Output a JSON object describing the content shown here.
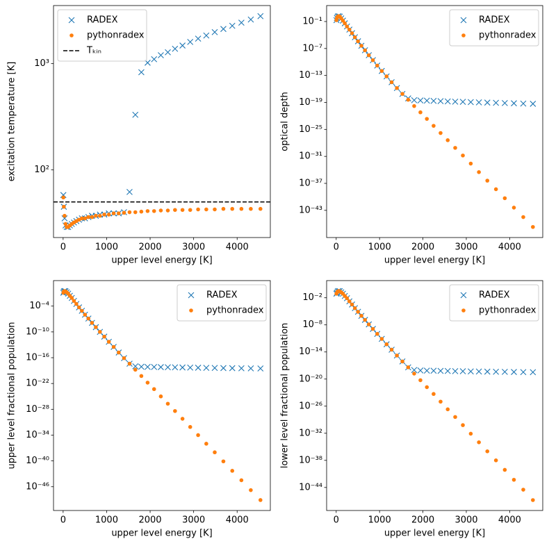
{
  "chart_data": [
    {
      "type": "scatter",
      "log_y": true,
      "xlabel": "upper level energy [K]",
      "ylabel": "excitation temperature [K]",
      "xlim": [
        -221,
        4763
      ],
      "xticks": [
        0,
        1000,
        2000,
        3000,
        4000
      ],
      "ylim": [
        23.1,
        3520
      ],
      "yticks": [
        {
          "value": 100,
          "label": "10²"
        },
        {
          "value": 1000,
          "label": "10³"
        }
      ],
      "legend": "upper left",
      "x": [
        5.5,
        16.6,
        33.2,
        55.3,
        83,
        116,
        155,
        199,
        249,
        304,
        365,
        431,
        503,
        581,
        664,
        752,
        846,
        946,
        1051,
        1162,
        1278,
        1400,
        1527,
        1660,
        1798,
        1942,
        2091,
        2246,
        2407,
        2572,
        2744,
        2921,
        3103,
        3291,
        3485,
        3684,
        3888,
        4098,
        4314,
        4536
      ],
      "series": [
        {
          "name": "RADEX",
          "color": "#1f77b4",
          "marker": "x",
          "values": [
            58,
            45,
            35,
            30,
            29,
            29,
            30,
            31,
            32,
            33,
            34,
            35,
            35,
            36,
            37,
            37,
            38,
            38,
            39,
            39,
            39,
            40,
            62,
            330,
            830,
            1020,
            1100,
            1200,
            1280,
            1380,
            1480,
            1600,
            1720,
            1840,
            1980,
            2120,
            2270,
            2430,
            2600,
            2800
          ]
        },
        {
          "name": "pythonradex",
          "color": "#ff7f0e",
          "marker": "o",
          "values": [
            55,
            45,
            37,
            31,
            29,
            29,
            30,
            31,
            32,
            33,
            34,
            35,
            35,
            36,
            36,
            37,
            37,
            38,
            38,
            39,
            39,
            39.5,
            40,
            40,
            40.5,
            41,
            41,
            41.5,
            41.5,
            42,
            42,
            42,
            42.5,
            42.5,
            42.5,
            43,
            43,
            43,
            43,
            43
          ]
        }
      ],
      "hlines": [
        {
          "name": "Tₖᵢₙ",
          "value": 50,
          "color": "#000000",
          "style": "dashed"
        }
      ]
    },
    {
      "type": "scatter",
      "log_y": true,
      "xlabel": "upper level energy [K]",
      "ylabel": "optical depth",
      "xlim": [
        -221,
        4763
      ],
      "xticks": [
        0,
        1000,
        2000,
        3000,
        4000
      ],
      "ylim": [
        8.9e-50,
        355
      ],
      "yticks": [
        {
          "value": 0.1,
          "label": "10⁻¹"
        },
        {
          "value": 1e-07,
          "label": "10⁻⁷"
        },
        {
          "value": 1e-13,
          "label": "10⁻¹³"
        },
        {
          "value": 1e-19,
          "label": "10⁻¹⁹"
        },
        {
          "value": 1e-25,
          "label": "10⁻²⁵"
        },
        {
          "value": 1e-31,
          "label": "10⁻³¹"
        },
        {
          "value": 1e-37,
          "label": "10⁻³⁷"
        },
        {
          "value": 1e-43,
          "label": "10⁻⁴³"
        }
      ],
      "legend": "upper right",
      "x": [
        5.5,
        16.6,
        33.2,
        55.3,
        83,
        116,
        155,
        199,
        249,
        304,
        365,
        431,
        503,
        581,
        664,
        752,
        846,
        946,
        1051,
        1162,
        1278,
        1400,
        1527,
        1660,
        1798,
        1942,
        2091,
        2246,
        2407,
        2572,
        2744,
        2921,
        3103,
        3291,
        3485,
        3684,
        3888,
        4098,
        4314,
        4536
      ],
      "series": [
        {
          "name": "RADEX",
          "color": "#1f77b4",
          "marker": "x",
          "values": [
            0.2,
            0.63,
            1.26,
            1.58,
            1.26,
            0.5,
            0.158,
            0.04,
            0.0079,
            0.00158,
            0.00025,
            3.16e-05,
            4e-06,
            4e-07,
            4e-08,
            3.16e-09,
            2.5e-10,
            1.58e-11,
            1e-12,
            6.3e-14,
            3.16e-15,
            1.58e-16,
            7.9e-18,
            7.9e-19,
            3.2e-19,
            2.8e-19,
            2.5e-19,
            2.2e-19,
            1.95e-19,
            1.7e-19,
            1.5e-19,
            1.35e-19,
            1.2e-19,
            1.05e-19,
            9.3e-20,
            8.3e-20,
            7.2e-20,
            6.5e-20,
            5.6e-20,
            5e-20
          ]
        },
        {
          "name": "pythonradex",
          "color": "#ff7f0e",
          "marker": "o",
          "values": [
            0.2,
            0.63,
            1.26,
            1.58,
            1.26,
            0.5,
            0.158,
            0.04,
            0.0079,
            0.00158,
            0.00025,
            3.16e-05,
            4e-06,
            4e-07,
            4e-08,
            3.16e-09,
            2.5e-10,
            1.58e-11,
            1e-12,
            6.3e-14,
            3.16e-15,
            1.58e-16,
            7.9e-18,
            4e-19,
            1.58e-20,
            6.3e-22,
            2.2e-23,
            6.3e-25,
            1.58e-26,
            4e-28,
            7.9e-30,
            1.58e-31,
            2.5e-33,
            3.16e-35,
            4e-37,
            5e-39,
            5e-41,
            4e-43,
            3.16e-45,
            2e-47
          ]
        }
      ]
    },
    {
      "type": "scatter",
      "log_y": true,
      "xlabel": "upper level energy [K]",
      "ylabel": "upper level fractional population",
      "xlim": [
        -221,
        4763
      ],
      "xticks": [
        0,
        1000,
        2000,
        3000,
        4000
      ],
      "ylim": [
        2.95e-52,
        85
      ],
      "yticks": [
        {
          "value": 0.0001,
          "label": "10⁻⁴"
        },
        {
          "value": 1e-10,
          "label": "10⁻¹⁰"
        },
        {
          "value": 1e-16,
          "label": "10⁻¹⁶"
        },
        {
          "value": 1e-22,
          "label": "10⁻²²"
        },
        {
          "value": 1e-28,
          "label": "10⁻²⁸"
        },
        {
          "value": 1e-34,
          "label": "10⁻³⁴"
        },
        {
          "value": 1e-40,
          "label": "10⁻⁴⁰"
        },
        {
          "value": 1e-46,
          "label": "10⁻⁴⁶"
        }
      ],
      "legend": "upper right",
      "x": [
        5.5,
        16.6,
        33.2,
        55.3,
        83,
        116,
        155,
        199,
        249,
        304,
        365,
        431,
        503,
        581,
        664,
        752,
        846,
        946,
        1051,
        1162,
        1278,
        1400,
        1527,
        1660,
        1798,
        1942,
        2091,
        2246,
        2407,
        2572,
        2744,
        2921,
        3103,
        3291,
        3485,
        3684,
        3888,
        4098,
        4314,
        4536
      ],
      "series": [
        {
          "name": "RADEX",
          "color": "#1f77b4",
          "marker": "x",
          "values": [
            0.126,
            0.25,
            0.316,
            0.28,
            0.158,
            0.079,
            0.025,
            0.0079,
            0.0016,
            0.00032,
            5e-05,
            7.9e-06,
            1e-06,
            1.26e-07,
            1.26e-08,
            1.26e-09,
            1e-10,
            7.9e-12,
            5e-13,
            3.2e-14,
            1.6e-15,
            7.9e-17,
            4e-18,
            1e-18,
            7.9e-19,
            7.4e-19,
            6.9e-19,
            6.5e-19,
            6.1e-19,
            5.7e-19,
            5.4e-19,
            5e-19,
            4.7e-19,
            4.4e-19,
            4.1e-19,
            3.9e-19,
            3.7e-19,
            3.5e-19,
            3.3e-19,
            3.2e-19
          ]
        },
        {
          "name": "pythonradex",
          "color": "#ff7f0e",
          "marker": "o",
          "values": [
            0.126,
            0.25,
            0.316,
            0.28,
            0.158,
            0.079,
            0.025,
            0.0079,
            0.0016,
            0.00032,
            5e-05,
            7.9e-06,
            1e-06,
            1.26e-07,
            1.26e-08,
            1.26e-09,
            1e-10,
            7.9e-12,
            5e-13,
            3.2e-14,
            1.6e-15,
            7.9e-17,
            4e-18,
            1.6e-19,
            5.6e-21,
            1.6e-22,
            5e-24,
            1e-25,
            2e-27,
            4e-29,
            6.3e-31,
            7.9e-33,
            1e-34,
            1e-36,
            1e-38,
            7.9e-41,
            5e-43,
            3.2e-45,
            1.6e-47,
            7.9e-50
          ]
        }
      ]
    },
    {
      "type": "scatter",
      "log_y": true,
      "xlabel": "upper level energy [K]",
      "ylabel": "lower level fractional population",
      "xlim": [
        -221,
        4763
      ],
      "xticks": [
        0,
        1000,
        2000,
        3000,
        4000
      ],
      "ylim": [
        7.9e-50,
        63
      ],
      "yticks": [
        {
          "value": 0.01,
          "label": "10⁻²"
        },
        {
          "value": 1e-08,
          "label": "10⁻⁸"
        },
        {
          "value": 1e-14,
          "label": "10⁻¹⁴"
        },
        {
          "value": 1e-20,
          "label": "10⁻²⁰"
        },
        {
          "value": 1e-26,
          "label": "10⁻²⁶"
        },
        {
          "value": 1e-32,
          "label": "10⁻³²"
        },
        {
          "value": 1e-38,
          "label": "10⁻³⁸"
        },
        {
          "value": 1e-44,
          "label": "10⁻⁴⁴"
        }
      ],
      "legend": "upper right",
      "x": [
        5.5,
        16.6,
        33.2,
        55.3,
        83,
        116,
        155,
        199,
        249,
        304,
        365,
        431,
        503,
        581,
        664,
        752,
        846,
        946,
        1051,
        1162,
        1278,
        1400,
        1527,
        1660,
        1798,
        1942,
        2091,
        2246,
        2407,
        2572,
        2744,
        2921,
        3103,
        3291,
        3485,
        3684,
        3888,
        4098,
        4314,
        4536
      ],
      "series": [
        {
          "name": "RADEX",
          "color": "#1f77b4",
          "marker": "x",
          "values": [
            0.079,
            0.126,
            0.25,
            0.316,
            0.28,
            0.158,
            0.079,
            0.025,
            0.0079,
            0.0016,
            0.00032,
            5e-05,
            7.9e-06,
            1e-06,
            1.26e-07,
            1.26e-08,
            1.26e-09,
            1e-10,
            7.9e-12,
            5e-13,
            3.2e-14,
            1.6e-15,
            7.9e-17,
            4e-18,
            1e-18,
            7.9e-19,
            7.4e-19,
            6.9e-19,
            6.5e-19,
            6.1e-19,
            5.7e-19,
            5.4e-19,
            5e-19,
            4.7e-19,
            4.4e-19,
            4.1e-19,
            3.9e-19,
            3.7e-19,
            3.5e-19,
            3.3e-19
          ]
        },
        {
          "name": "pythonradex",
          "color": "#ff7f0e",
          "marker": "o",
          "values": [
            0.079,
            0.126,
            0.25,
            0.316,
            0.28,
            0.158,
            0.079,
            0.025,
            0.0079,
            0.0016,
            0.00032,
            5e-05,
            7.9e-06,
            1e-06,
            1.26e-07,
            1.26e-08,
            1.26e-09,
            1e-10,
            7.9e-12,
            5e-13,
            3.2e-14,
            1.6e-15,
            7.9e-17,
            4e-18,
            1.6e-19,
            5.6e-21,
            1.6e-22,
            5e-24,
            1e-25,
            2e-27,
            4e-29,
            6.3e-31,
            7.9e-33,
            1e-34,
            1e-36,
            1e-38,
            7.9e-41,
            5e-43,
            3.2e-45,
            1.6e-47
          ]
        }
      ]
    }
  ]
}
